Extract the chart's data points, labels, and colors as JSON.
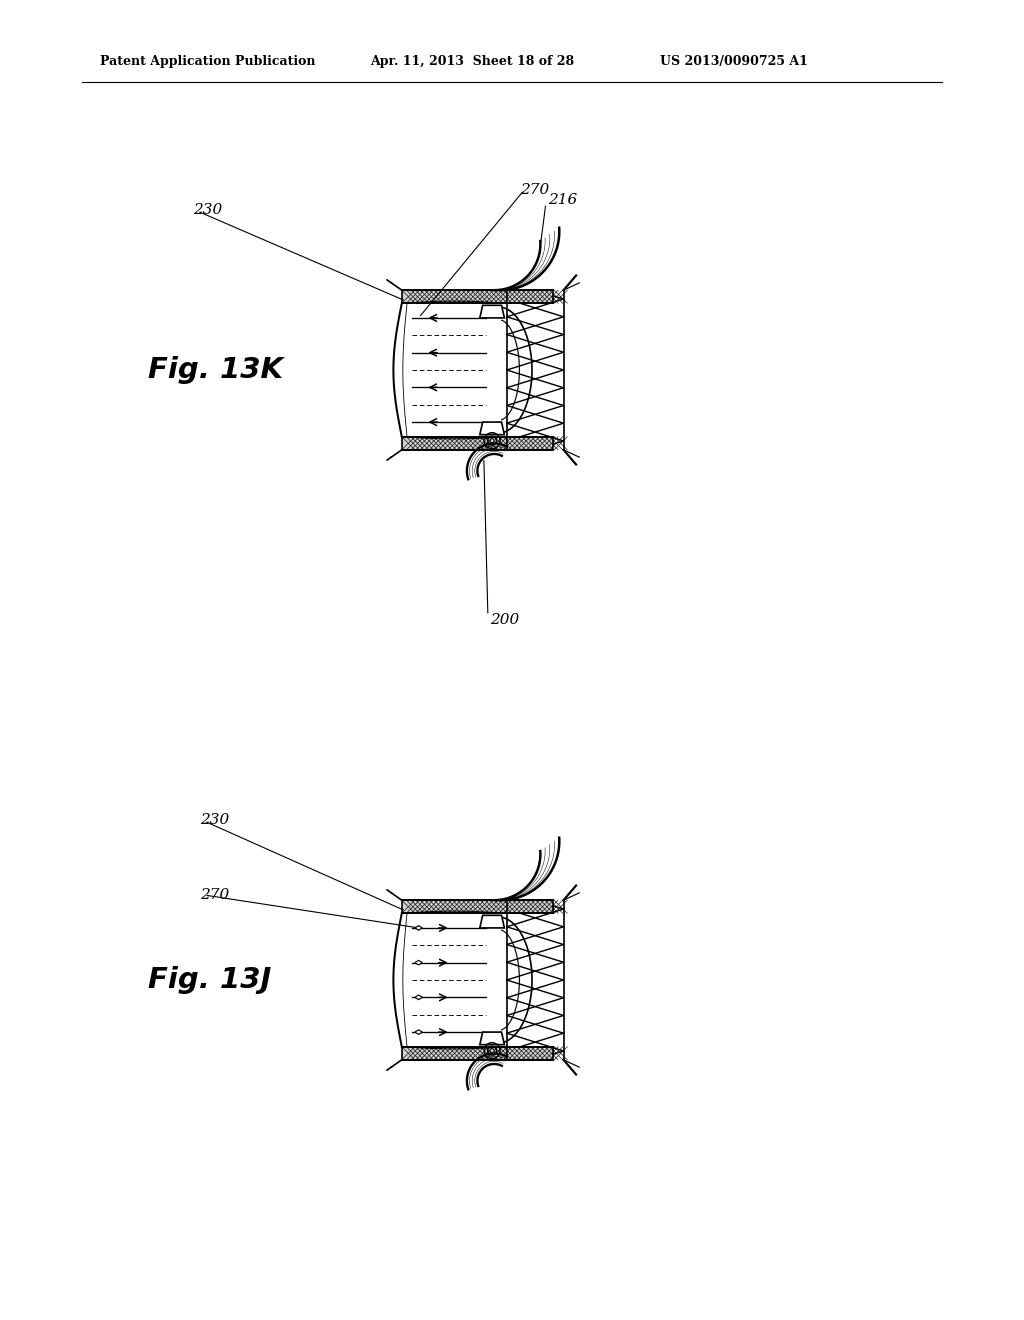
{
  "background_color": "#ffffff",
  "header_text": "Patent Application Publication",
  "header_date": "Apr. 11, 2013  Sheet 18 of 28",
  "header_patent": "US 2013/0090725 A1",
  "fig_13k_label": "Fig. 13K",
  "fig_13j_label": "Fig. 13J",
  "line_color": "#000000",
  "text_color": "#000000"
}
